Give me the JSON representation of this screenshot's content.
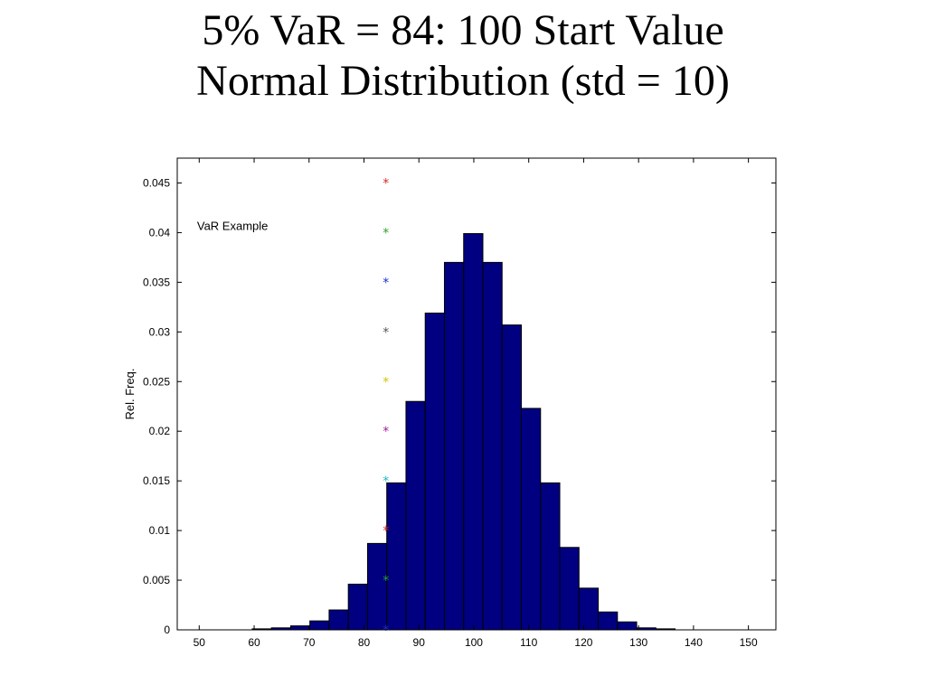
{
  "title_lines": [
    "5% VaR = 84: 100 Start Value",
    "Normal Distribution (std = 10)"
  ],
  "chart_data": {
    "type": "bar",
    "title": "",
    "xlabel": "",
    "ylabel": "Rel. Freq.",
    "annotation": "VaR Example",
    "xlim": [
      46,
      155
    ],
    "ylim": [
      0,
      0.0475
    ],
    "bar_width": 3.5,
    "bar_color": "#000080",
    "x_ticks": [
      50,
      60,
      70,
      80,
      90,
      100,
      110,
      120,
      130,
      140,
      150
    ],
    "y_ticks": [
      0,
      0.005,
      0.01,
      0.015,
      0.02,
      0.025,
      0.03,
      0.035,
      0.04,
      0.045
    ],
    "y_tick_labels": [
      "0",
      "0.005",
      "0.01",
      "0.015",
      "0.02",
      "0.025",
      "0.03",
      "0.035",
      "0.04",
      "0.045"
    ],
    "x_tick_labels": [
      "50",
      "60",
      "70",
      "80",
      "90",
      "100",
      "110",
      "120",
      "130",
      "140",
      "150"
    ],
    "bins": [
      {
        "x": 61.4,
        "y": 0.0001
      },
      {
        "x": 64.9,
        "y": 0.0002
      },
      {
        "x": 68.4,
        "y": 0.0004
      },
      {
        "x": 71.9,
        "y": 0.0009
      },
      {
        "x": 75.4,
        "y": 0.002
      },
      {
        "x": 78.9,
        "y": 0.0046
      },
      {
        "x": 82.4,
        "y": 0.0087
      },
      {
        "x": 85.9,
        "y": 0.0148
      },
      {
        "x": 89.4,
        "y": 0.023
      },
      {
        "x": 92.9,
        "y": 0.0319
      },
      {
        "x": 96.4,
        "y": 0.037
      },
      {
        "x": 99.9,
        "y": 0.0399
      },
      {
        "x": 103.4,
        "y": 0.037
      },
      {
        "x": 106.9,
        "y": 0.0307
      },
      {
        "x": 110.4,
        "y": 0.0223
      },
      {
        "x": 113.9,
        "y": 0.0148
      },
      {
        "x": 117.4,
        "y": 0.0083
      },
      {
        "x": 120.9,
        "y": 0.0042
      },
      {
        "x": 124.4,
        "y": 0.0018
      },
      {
        "x": 127.9,
        "y": 0.0008
      },
      {
        "x": 131.4,
        "y": 0.0002
      },
      {
        "x": 134.9,
        "y": 0.0001
      }
    ],
    "var_markers": {
      "x": 84,
      "points": [
        {
          "y": 0.045,
          "color": "#d62728"
        },
        {
          "y": 0.04,
          "color": "#2ca02c"
        },
        {
          "y": 0.035,
          "color": "#1f2fd0"
        },
        {
          "y": 0.03,
          "color": "#555555"
        },
        {
          "y": 0.025,
          "color": "#d4c400"
        },
        {
          "y": 0.02,
          "color": "#a020a0"
        },
        {
          "y": 0.015,
          "color": "#20b8c0"
        },
        {
          "y": 0.01,
          "color": "#d62728"
        },
        {
          "y": 0.005,
          "color": "#2ca02c"
        },
        {
          "y": 0,
          "color": "#1f2fd0"
        }
      ]
    },
    "grid": false
  }
}
